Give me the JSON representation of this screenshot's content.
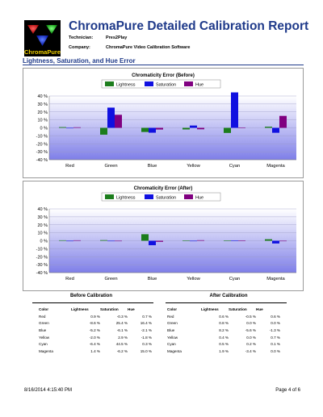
{
  "report": {
    "logo_text": "ChromaPure",
    "title": "ChromaPure Detailed Calibration Report",
    "technician_label": "Technician:",
    "technician": "Pres2Play",
    "company_label": "Company:",
    "company": "ChromaPure Video Calibration Software",
    "section_title": "Lightness, Saturation, and Hue Error"
  },
  "legend_colors": {
    "Lightness": "#1c7d1c",
    "Saturation": "#1010e0",
    "Hue": "#800080"
  },
  "chart_data": [
    {
      "type": "bar",
      "title": "Chromaticity Error (Before)",
      "categories": [
        "Red",
        "Green",
        "Blue",
        "Yellow",
        "Cyan",
        "Magenta"
      ],
      "series": [
        {
          "name": "Lightness",
          "values": [
            0.9,
            -8.6,
            -5.2,
            -2.0,
            -6.4,
            1.4
          ]
        },
        {
          "name": "Saturation",
          "values": [
            -0.3,
            25.4,
            -6.1,
            2.9,
            44.5,
            -6.2
          ]
        },
        {
          "name": "Hue",
          "values": [
            0.7,
            16.4,
            -2.1,
            -1.8,
            0.3,
            15.0
          ]
        }
      ],
      "yticks": [
        "40 %",
        "30 %",
        "20 %",
        "10 %",
        "0 %",
        "-10 %",
        "-20 %",
        "-30 %",
        "-40 %"
      ],
      "ylim": [
        -40,
        40
      ]
    },
    {
      "type": "bar",
      "title": "Chromaticity Error (After)",
      "categories": [
        "Red",
        "Green",
        "Blue",
        "Yellow",
        "Cyan",
        "Magenta"
      ],
      "series": [
        {
          "name": "Lightness",
          "values": [
            0.6,
            0.8,
            8.2,
            0.4,
            0.5,
            1.9
          ]
        },
        {
          "name": "Saturation",
          "values": [
            -0.5,
            0.0,
            -5.6,
            0.0,
            0.2,
            -3.4
          ]
        },
        {
          "name": "Hue",
          "values": [
            0.6,
            0.0,
            -1.3,
            0.7,
            0.1,
            0.0
          ]
        }
      ],
      "yticks": [
        "40 %",
        "30 %",
        "20 %",
        "10 %",
        "0 %",
        "-10 %",
        "-20 %",
        "-30 %",
        "-40 %"
      ],
      "ylim": [
        -40,
        40
      ]
    }
  ],
  "before_table": {
    "title": "Before Calibration",
    "headers": [
      "Color",
      "Lightness",
      "Saturation",
      "Hue"
    ],
    "rows": [
      [
        "Red",
        "0.9 %",
        "-0.3 %",
        "0.7 %"
      ],
      [
        "Green",
        "-8.6 %",
        "25.4 %",
        "16.4 %"
      ],
      [
        "Blue",
        "-5.2 %",
        "-6.1 %",
        "-2.1 %"
      ],
      [
        "Yellow",
        "-2.0 %",
        "2.9 %",
        "-1.8 %"
      ],
      [
        "Cyan",
        "-6.4 %",
        "44.5 %",
        "0.3 %"
      ],
      [
        "Magenta",
        "1.4 %",
        "-6.2 %",
        "15.0 %"
      ]
    ]
  },
  "after_table": {
    "title": "After Calibration",
    "headers": [
      "Color",
      "Lightness",
      "Saturation",
      "Hue"
    ],
    "rows": [
      [
        "Red",
        "0.6 %",
        "-0.5 %",
        "0.6 %"
      ],
      [
        "Green",
        "0.8 %",
        "0.0 %",
        "0.0 %"
      ],
      [
        "Blue",
        "8.2 %",
        "-5.6 %",
        "-1.3 %"
      ],
      [
        "Yellow",
        "0.4 %",
        "0.0 %",
        "0.7 %"
      ],
      [
        "Cyan",
        "0.5 %",
        "0.2 %",
        "0.1 %"
      ],
      [
        "Magenta",
        "1.9 %",
        "-3.4 %",
        "0.0 %"
      ]
    ]
  },
  "footer": {
    "timestamp": "8/16/2014 4:15:40 PM",
    "page": "Page 4 of 6"
  }
}
